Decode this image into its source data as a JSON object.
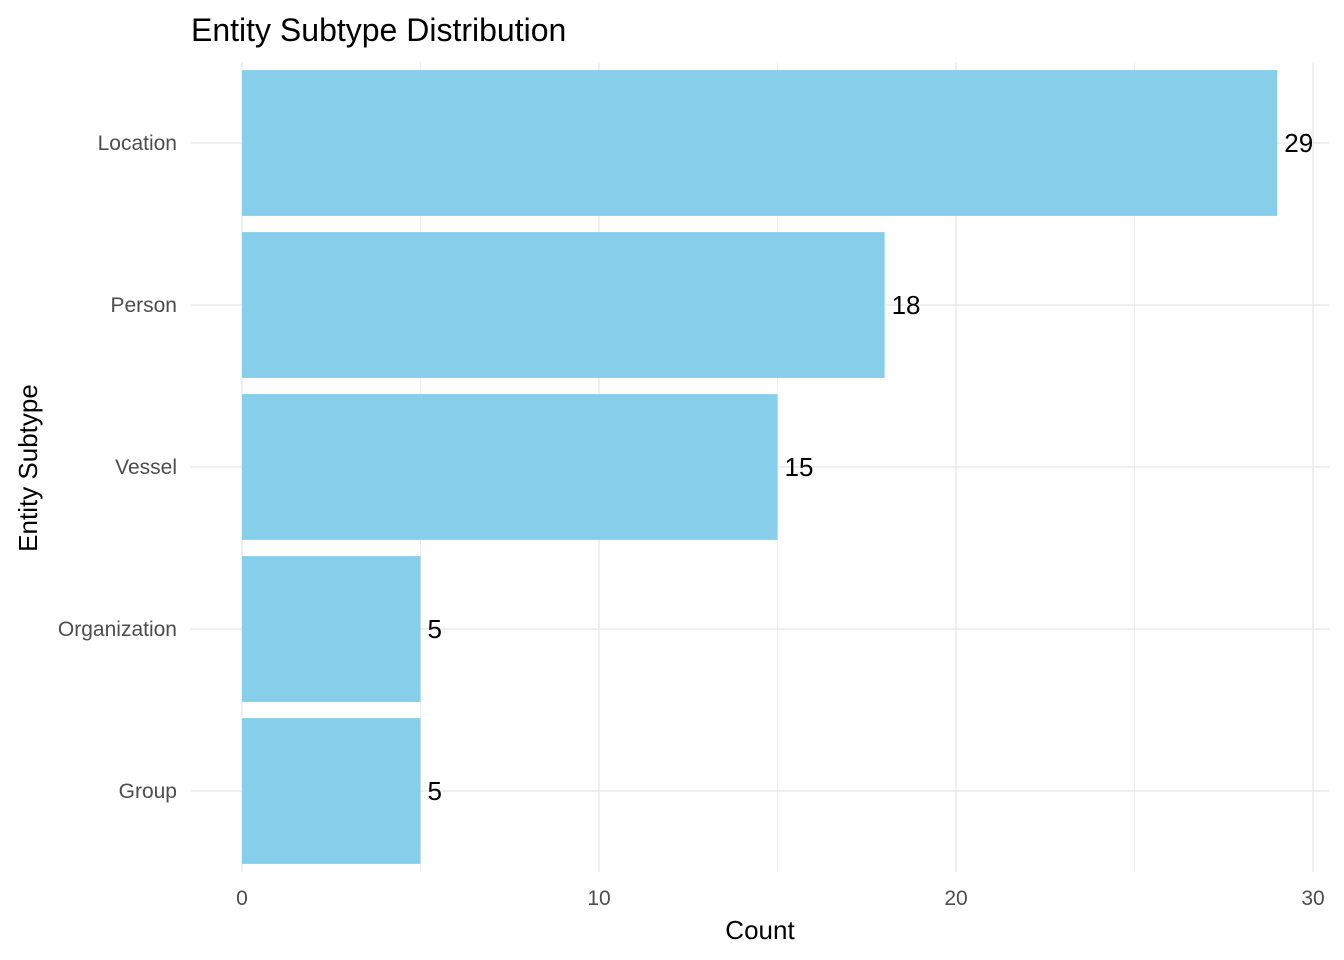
{
  "chart_data": {
    "type": "bar",
    "orientation": "horizontal",
    "title": "Entity Subtype Distribution",
    "xlabel": "Count",
    "ylabel": "Entity Subtype",
    "categories": [
      "Location",
      "Person",
      "Vessel",
      "Organization",
      "Group"
    ],
    "values": [
      29,
      18,
      15,
      5,
      5
    ],
    "xlim": [
      0,
      30.5
    ],
    "xticks": [
      0,
      10,
      20,
      30
    ],
    "grid": true,
    "legend": "none",
    "colors": {
      "bar": "#87CEEB",
      "grid": "#ebebeb",
      "background": "#ffffff"
    }
  }
}
